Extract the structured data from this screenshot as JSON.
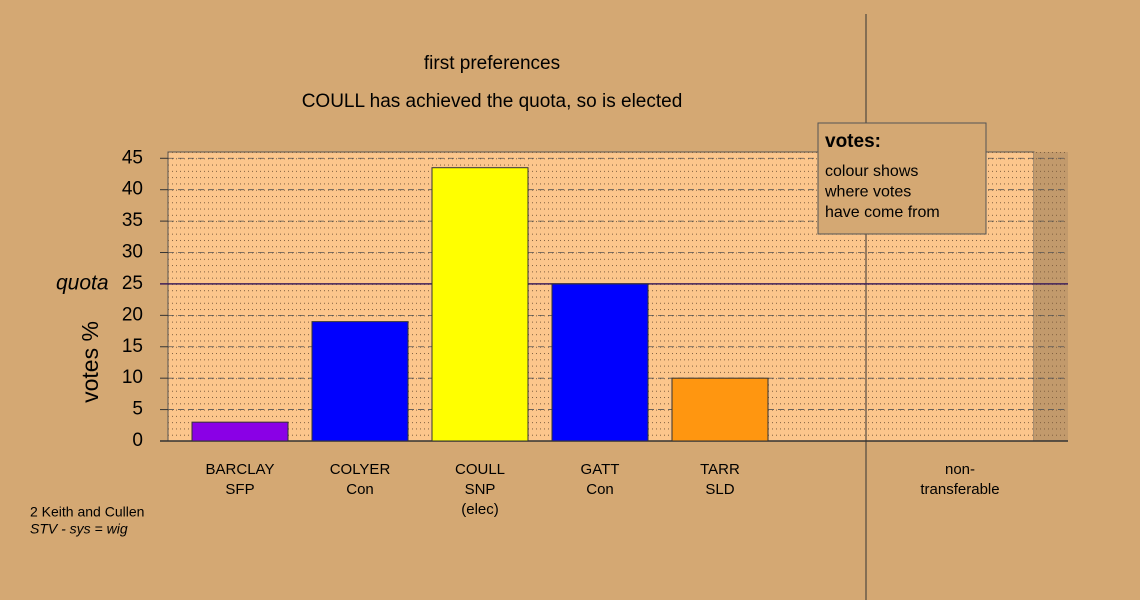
{
  "chart_data": {
    "type": "bar",
    "title": "first preferences",
    "subtitle": "COULL has achieved the quota, so is elected",
    "y_label": "votes %",
    "categories": [
      [
        "BARCLAY",
        "SFP"
      ],
      [
        "COLYER",
        "Con"
      ],
      [
        "COULL",
        "SNP",
        "(elec)"
      ],
      [
        "GATT",
        "Con"
      ],
      [
        "TARR",
        "SLD"
      ],
      null,
      [
        "non-",
        "transferable"
      ]
    ],
    "values": [
      3,
      19,
      43.5,
      25,
      10,
      null,
      0
    ],
    "colors": [
      "#8a00e6",
      "#0000ff",
      "#ffff00",
      "#0000ff",
      "#ff9610",
      null,
      null
    ],
    "ylim": [
      0,
      46
    ],
    "yticks": [
      0,
      5,
      10,
      15,
      20,
      25,
      30,
      35,
      40,
      45
    ],
    "grid": true,
    "quota": {
      "value": 25,
      "label": "quota"
    },
    "legend": {
      "title": "votes:",
      "lines": [
        "colour shows",
        "where votes",
        "have come from"
      ]
    },
    "footnote": [
      "2 Keith and Cullen",
      "STV - sys = wig"
    ]
  }
}
